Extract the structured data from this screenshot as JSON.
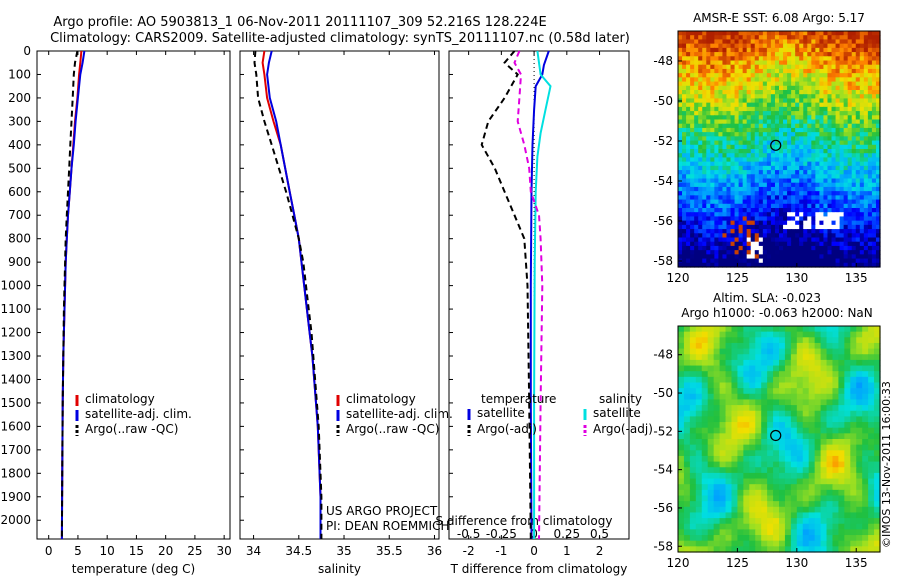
{
  "title_line1": "Argo profile: AO 5903813_1 06-Nov-2011 20111107_309 52.216S 128.224E",
  "title_line2": "Climatology: CARS2009. Satellite-adjusted climatology: synTS_20111107.nc (0.58d later)",
  "credit_line1": "US ARGO PROJECT",
  "credit_line2": "PI: DEAN ROEMMICH",
  "copyright": "©IMOS 13-Nov-2011 16:00:33",
  "colors": {
    "climatology": "#e00000",
    "satellite": "#0000e0",
    "argo": "#000000",
    "sat_s": "#00e0e0",
    "argo_s": "#e000e0"
  },
  "chart_data": [
    {
      "type": "line",
      "panel": "temperature",
      "xlabel": "temperature (deg C)",
      "ylabel": "",
      "xlim": [
        -2,
        31
      ],
      "ylim": [
        2080,
        0
      ],
      "x_ticks": [
        "0",
        "5",
        "10",
        "15",
        "20",
        "25",
        "30"
      ],
      "x_tick_values": [
        0,
        5,
        10,
        15,
        20,
        25,
        30
      ],
      "y_ticks": [
        "0",
        "100",
        "200",
        "300",
        "400",
        "500",
        "600",
        "700",
        "800",
        "900",
        "1000",
        "1100",
        "1200",
        "1300",
        "1400",
        "1500",
        "1600",
        "1700",
        "1800",
        "1900",
        "2000"
      ],
      "y_tick_values": [
        0,
        100,
        200,
        300,
        400,
        500,
        600,
        700,
        800,
        900,
        1000,
        1100,
        1200,
        1300,
        1400,
        1500,
        1600,
        1700,
        1800,
        1900,
        2000
      ],
      "legend": [
        "climatology",
        "satellite-adj. clim.",
        "Argo(..raw -QC)"
      ],
      "series": [
        {
          "name": "climatology",
          "color_key": "climatology",
          "dash": "",
          "points": [
            [
              5.6,
              0
            ],
            [
              5.4,
              50
            ],
            [
              5.2,
              100
            ],
            [
              4.9,
              200
            ],
            [
              4.5,
              300
            ],
            [
              4.2,
              400
            ],
            [
              3.9,
              500
            ],
            [
              3.6,
              600
            ],
            [
              3.3,
              700
            ],
            [
              3.1,
              800
            ],
            [
              2.9,
              900
            ],
            [
              2.8,
              1000
            ],
            [
              2.7,
              1100
            ],
            [
              2.6,
              1200
            ],
            [
              2.5,
              1300
            ],
            [
              2.45,
              1400
            ],
            [
              2.4,
              1500
            ],
            [
              2.35,
              1700
            ],
            [
              2.3,
              1900
            ],
            [
              2.25,
              2080
            ]
          ]
        },
        {
          "name": "satellite-adj. clim.",
          "color_key": "satellite",
          "dash": "",
          "points": [
            [
              6.1,
              0
            ],
            [
              5.8,
              50
            ],
            [
              5.4,
              100
            ],
            [
              5.0,
              200
            ],
            [
              4.6,
              300
            ],
            [
              4.3,
              400
            ],
            [
              3.9,
              500
            ],
            [
              3.6,
              600
            ],
            [
              3.3,
              700
            ],
            [
              3.1,
              800
            ],
            [
              2.9,
              900
            ],
            [
              2.8,
              1000
            ],
            [
              2.7,
              1100
            ],
            [
              2.6,
              1200
            ],
            [
              2.5,
              1300
            ],
            [
              2.45,
              1400
            ],
            [
              2.4,
              1500
            ],
            [
              2.35,
              1700
            ],
            [
              2.3,
              1900
            ],
            [
              2.25,
              2080
            ]
          ]
        },
        {
          "name": "Argo(..raw -QC)",
          "color_key": "argo",
          "dash": "6,4",
          "points": [
            [
              4.9,
              0
            ],
            [
              4.5,
              50
            ],
            [
              4.3,
              100
            ],
            [
              4.1,
              200
            ],
            [
              3.9,
              300
            ],
            [
              3.7,
              400
            ],
            [
              3.5,
              500
            ],
            [
              3.3,
              600
            ],
            [
              3.1,
              700
            ],
            [
              2.9,
              800
            ],
            [
              2.8,
              900
            ],
            [
              2.7,
              1000
            ],
            [
              2.6,
              1100
            ],
            [
              2.55,
              1200
            ],
            [
              2.5,
              1300
            ],
            [
              2.45,
              1400
            ],
            [
              2.4,
              1500
            ],
            [
              2.35,
              1700
            ],
            [
              2.3,
              1900
            ],
            [
              2.25,
              2080
            ]
          ]
        }
      ]
    },
    {
      "type": "line",
      "panel": "salinity",
      "xlabel": "salinity",
      "xlim": [
        33.85,
        36.05
      ],
      "ylim": [
        2080,
        0
      ],
      "x_ticks": [
        "34",
        "34.5",
        "35",
        "35.5",
        "36"
      ],
      "x_tick_values": [
        34,
        34.5,
        35,
        35.5,
        36
      ],
      "legend": [
        "climatology",
        "satellite-adj. clim.",
        "Argo(..raw -QC)"
      ],
      "series": [
        {
          "name": "climatology",
          "color_key": "climatology",
          "dash": "",
          "points": [
            [
              34.12,
              0
            ],
            [
              34.1,
              50
            ],
            [
              34.12,
              100
            ],
            [
              34.15,
              200
            ],
            [
              34.22,
              300
            ],
            [
              34.3,
              400
            ],
            [
              34.35,
              500
            ],
            [
              34.4,
              600
            ],
            [
              34.45,
              700
            ],
            [
              34.5,
              800
            ],
            [
              34.53,
              900
            ],
            [
              34.56,
              1000
            ],
            [
              34.59,
              1100
            ],
            [
              34.62,
              1200
            ],
            [
              34.65,
              1300
            ],
            [
              34.67,
              1400
            ],
            [
              34.69,
              1500
            ],
            [
              34.71,
              1600
            ],
            [
              34.72,
              1700
            ],
            [
              34.73,
              1800
            ],
            [
              34.74,
              1900
            ],
            [
              34.74,
              2080
            ]
          ]
        },
        {
          "name": "satellite-adj. clim.",
          "color_key": "satellite",
          "dash": "",
          "points": [
            [
              34.2,
              0
            ],
            [
              34.17,
              50
            ],
            [
              34.15,
              100
            ],
            [
              34.18,
              200
            ],
            [
              34.25,
              300
            ],
            [
              34.3,
              400
            ],
            [
              34.35,
              500
            ],
            [
              34.4,
              600
            ],
            [
              34.45,
              700
            ],
            [
              34.5,
              800
            ],
            [
              34.53,
              900
            ],
            [
              34.56,
              1000
            ],
            [
              34.59,
              1100
            ],
            [
              34.62,
              1200
            ],
            [
              34.65,
              1300
            ],
            [
              34.67,
              1400
            ],
            [
              34.69,
              1500
            ],
            [
              34.71,
              1600
            ],
            [
              34.72,
              1700
            ],
            [
              34.73,
              1800
            ],
            [
              34.74,
              1900
            ],
            [
              34.74,
              2080
            ]
          ]
        },
        {
          "name": "Argo(..raw -QC)",
          "color_key": "argo",
          "dash": "6,4",
          "points": [
            [
              34.02,
              0
            ],
            [
              34.01,
              50
            ],
            [
              34.03,
              100
            ],
            [
              34.05,
              200
            ],
            [
              34.12,
              300
            ],
            [
              34.2,
              400
            ],
            [
              34.28,
              500
            ],
            [
              34.36,
              600
            ],
            [
              34.43,
              700
            ],
            [
              34.5,
              800
            ],
            [
              34.55,
              900
            ],
            [
              34.58,
              1000
            ],
            [
              34.61,
              1100
            ],
            [
              34.64,
              1200
            ],
            [
              34.66,
              1300
            ],
            [
              34.68,
              1400
            ],
            [
              34.7,
              1500
            ],
            [
              34.72,
              1600
            ],
            [
              34.73,
              1700
            ],
            [
              34.74,
              1800
            ],
            [
              34.75,
              1900
            ],
            [
              34.75,
              2080
            ]
          ]
        }
      ]
    },
    {
      "type": "line",
      "panel": "difference",
      "xlabel": "T difference from climatology",
      "top_label": "S difference from climatology",
      "xlim": [
        -2.6,
        2.9
      ],
      "ylim": [
        2080,
        0
      ],
      "x_ticks": [
        "-2",
        "-1",
        "0",
        "1",
        "2"
      ],
      "x_tick_values": [
        -2,
        -1,
        0,
        1,
        2
      ],
      "s_ticks": [
        "-0.5",
        "-0.25",
        "0",
        "0.25",
        "0.5"
      ],
      "s_tick_values": [
        -0.5,
        -0.25,
        0,
        0.25,
        0.5
      ],
      "legend_t_header": "temperature",
      "legend_s_header": "salinity",
      "legend": [
        "satellite",
        "Argo(-adj)",
        "satellite",
        "Argo(-adj)"
      ],
      "series": [
        {
          "name": "satellite",
          "color_key": "satellite",
          "dash": "",
          "points": [
            [
              0.45,
              0
            ],
            [
              0.3,
              60
            ],
            [
              0.25,
              100
            ],
            [
              0.05,
              150
            ],
            [
              0.0,
              250
            ],
            [
              -0.05,
              400
            ],
            [
              -0.08,
              600
            ],
            [
              -0.1,
              1000
            ],
            [
              -0.1,
              1500
            ],
            [
              -0.08,
              2080
            ]
          ]
        },
        {
          "name": "Argo(-adj)",
          "color_key": "argo",
          "dash": "6,4",
          "points": [
            [
              -0.6,
              0
            ],
            [
              -0.9,
              50
            ],
            [
              -0.5,
              100
            ],
            [
              -0.9,
              200
            ],
            [
              -1.4,
              300
            ],
            [
              -1.6,
              400
            ],
            [
              -1.2,
              500
            ],
            [
              -0.9,
              600
            ],
            [
              -0.6,
              700
            ],
            [
              -0.3,
              800
            ],
            [
              -0.2,
              1000
            ],
            [
              -0.15,
              1500
            ],
            [
              -0.1,
              2080
            ]
          ]
        },
        {
          "name": "satellite",
          "color_key": "sat_s",
          "dash": "",
          "points": [
            [
              0.1,
              0
            ],
            [
              0.2,
              100
            ],
            [
              0.5,
              150
            ],
            [
              0.35,
              250
            ],
            [
              0.2,
              350
            ],
            [
              0.1,
              450
            ],
            [
              0.05,
              600
            ],
            [
              0.02,
              900
            ],
            [
              0.0,
              1500
            ],
            [
              0.0,
              2080
            ]
          ]
        },
        {
          "name": "Argo(-adj)",
          "color_key": "argo_s",
          "dash": "6,4",
          "points": [
            [
              -0.45,
              0
            ],
            [
              -0.6,
              50
            ],
            [
              -0.4,
              100
            ],
            [
              -0.45,
              200
            ],
            [
              -0.5,
              300
            ],
            [
              -0.3,
              400
            ],
            [
              -0.15,
              500
            ],
            [
              -0.1,
              600
            ],
            [
              0.15,
              700
            ],
            [
              0.2,
              800
            ],
            [
              0.25,
              1000
            ],
            [
              0.2,
              1500
            ],
            [
              0.15,
              2080
            ]
          ]
        }
      ]
    },
    {
      "type": "heatmap",
      "panel": "sst_map",
      "title": "AMSR-E SST: 6.08 Argo: 5.17",
      "xlim": [
        120,
        137
      ],
      "ylim": [
        -58.3,
        -46.5
      ],
      "x_ticks": [
        "120",
        "125",
        "130",
        "135"
      ],
      "x_tick_values": [
        120,
        125,
        130,
        135
      ],
      "y_ticks": [
        "-48",
        "-50",
        "-52",
        "-54",
        "-56",
        "-58"
      ],
      "y_tick_values": [
        -48,
        -50,
        -52,
        -54,
        -56,
        -58
      ],
      "marker": [
        128.224,
        -52.216
      ]
    },
    {
      "type": "heatmap",
      "panel": "sla_map",
      "title_line1": "Altim. SLA: -0.023",
      "title_line2": "Argo h1000: -0.063 h2000: NaN",
      "xlim": [
        120,
        137
      ],
      "ylim": [
        -58.3,
        -46.5
      ],
      "x_ticks": [
        "120",
        "125",
        "130",
        "135"
      ],
      "x_tick_values": [
        120,
        125,
        130,
        135
      ],
      "y_ticks": [
        "-48",
        "-50",
        "-52",
        "-54",
        "-56",
        "-58"
      ],
      "y_tick_values": [
        -48,
        -50,
        -52,
        -54,
        -56,
        -58
      ],
      "marker": [
        128.224,
        -52.216
      ]
    }
  ]
}
